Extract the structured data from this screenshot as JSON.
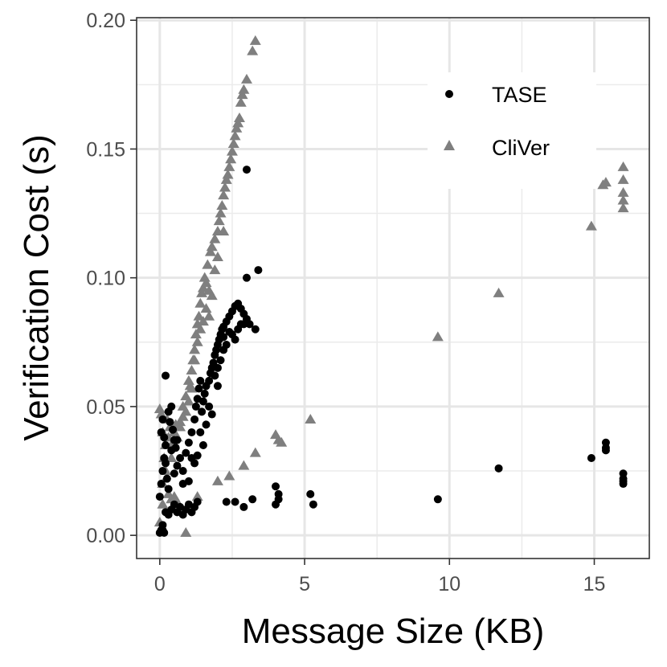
{
  "chart_data": {
    "type": "scatter",
    "xlabel": "Message Size (KB)",
    "ylabel": "Verification Cost (s)",
    "xlim": [
      -0.8,
      16.9
    ],
    "ylim": [
      -0.009,
      0.201
    ],
    "x_ticks": [
      0,
      5,
      10,
      15
    ],
    "x_tick_labels": [
      "0",
      "5",
      "10",
      "15"
    ],
    "y_ticks": [
      0,
      0.05,
      0.1,
      0.15,
      0.2
    ],
    "y_tick_labels": [
      "0.00",
      "0.05",
      "0.10",
      "0.15",
      "0.20"
    ],
    "grid": true,
    "legend_position": "top-right",
    "series": [
      {
        "name": "CliVer",
        "marker": "triangle",
        "color": "#7f7f7f",
        "points": [
          [
            0.0,
            0.049
          ],
          [
            0.05,
            0.047
          ],
          [
            0.1,
            0.04
          ],
          [
            0.1,
            0.02
          ],
          [
            0.1,
            0.012
          ],
          [
            0.15,
            0.03
          ],
          [
            0.2,
            0.035
          ],
          [
            0.2,
            0.025
          ],
          [
            0.0,
            0.005
          ],
          [
            0.05,
            0.002
          ],
          [
            0.25,
            0.045
          ],
          [
            0.3,
            0.038
          ],
          [
            0.35,
            0.042
          ],
          [
            0.4,
            0.03
          ],
          [
            0.45,
            0.036
          ],
          [
            0.5,
            0.04
          ],
          [
            0.55,
            0.043
          ],
          [
            0.6,
            0.038
          ],
          [
            0.3,
            0.016
          ],
          [
            0.4,
            0.014
          ],
          [
            0.5,
            0.015
          ],
          [
            0.6,
            0.013
          ],
          [
            0.7,
            0.044
          ],
          [
            0.8,
            0.05
          ],
          [
            0.9,
            0.054
          ],
          [
            1.0,
            0.06
          ],
          [
            1.05,
            0.058
          ],
          [
            1.1,
            0.064
          ],
          [
            1.15,
            0.068
          ],
          [
            1.2,
            0.072
          ],
          [
            1.25,
            0.078
          ],
          [
            1.3,
            0.082
          ],
          [
            1.35,
            0.085
          ],
          [
            1.4,
            0.09
          ],
          [
            1.45,
            0.094
          ],
          [
            1.5,
            0.096
          ],
          [
            1.55,
            0.1
          ],
          [
            1.6,
            0.098
          ],
          [
            1.65,
            0.105
          ],
          [
            1.7,
            0.095
          ],
          [
            1.75,
            0.11
          ],
          [
            1.8,
            0.112
          ],
          [
            1.9,
            0.115
          ],
          [
            2.0,
            0.118
          ],
          [
            2.05,
            0.122
          ],
          [
            2.1,
            0.125
          ],
          [
            2.15,
            0.128
          ],
          [
            2.2,
            0.132
          ],
          [
            2.25,
            0.135
          ],
          [
            2.3,
            0.138
          ],
          [
            2.35,
            0.14
          ],
          [
            2.4,
            0.143
          ],
          [
            2.45,
            0.146
          ],
          [
            2.5,
            0.149
          ],
          [
            2.55,
            0.152
          ],
          [
            2.6,
            0.155
          ],
          [
            2.65,
            0.158
          ],
          [
            2.7,
            0.16
          ],
          [
            2.75,
            0.162
          ],
          [
            2.8,
            0.168
          ],
          [
            2.85,
            0.171
          ],
          [
            2.9,
            0.173
          ],
          [
            3.0,
            0.177
          ],
          [
            3.2,
            0.188
          ],
          [
            3.3,
            0.192
          ],
          [
            1.6,
            0.088
          ],
          [
            1.7,
            0.085
          ],
          [
            1.8,
            0.093
          ],
          [
            1.9,
            0.103
          ],
          [
            2.0,
            0.108
          ],
          [
            2.2,
            0.118
          ],
          [
            1.4,
            0.08
          ],
          [
            1.3,
            0.075
          ],
          [
            1.2,
            0.068
          ],
          [
            1.1,
            0.057
          ],
          [
            0.9,
            0.048
          ],
          [
            0.8,
            0.046
          ],
          [
            0.7,
            0.042
          ],
          [
            1.0,
            0.052
          ],
          [
            1.5,
            0.083
          ],
          [
            0.9,
            0.001
          ],
          [
            1.3,
            0.015
          ],
          [
            2.0,
            0.021
          ],
          [
            2.4,
            0.023
          ],
          [
            2.9,
            0.027
          ],
          [
            3.3,
            0.032
          ],
          [
            4.0,
            0.039
          ],
          [
            4.1,
            0.037
          ],
          [
            4.2,
            0.036
          ],
          [
            5.2,
            0.045
          ],
          [
            9.6,
            0.077
          ],
          [
            11.7,
            0.094
          ],
          [
            14.9,
            0.12
          ],
          [
            15.3,
            0.136
          ],
          [
            15.4,
            0.137
          ],
          [
            16.0,
            0.143
          ],
          [
            16.0,
            0.138
          ],
          [
            16.0,
            0.133
          ],
          [
            16.0,
            0.13
          ],
          [
            16.0,
            0.127
          ]
        ]
      },
      {
        "name": "TASE",
        "marker": "circle",
        "color": "#000000",
        "points": [
          [
            0.0,
            0.001
          ],
          [
            0.05,
            0.002
          ],
          [
            0.1,
            0.004
          ],
          [
            0.1,
            0.002
          ],
          [
            0.15,
            0.001
          ],
          [
            0.2,
            0.062
          ],
          [
            0.0,
            0.015
          ],
          [
            0.05,
            0.02
          ],
          [
            0.1,
            0.025
          ],
          [
            0.15,
            0.03
          ],
          [
            0.2,
            0.035
          ],
          [
            0.05,
            0.04
          ],
          [
            0.1,
            0.045
          ],
          [
            0.15,
            0.038
          ],
          [
            0.2,
            0.028
          ],
          [
            0.25,
            0.022
          ],
          [
            0.3,
            0.018
          ],
          [
            0.3,
            0.048
          ],
          [
            0.35,
            0.044
          ],
          [
            0.4,
            0.05
          ],
          [
            0.45,
            0.041
          ],
          [
            0.5,
            0.037
          ],
          [
            0.55,
            0.034
          ],
          [
            0.2,
            0.009
          ],
          [
            0.3,
            0.008
          ],
          [
            0.4,
            0.01
          ],
          [
            0.5,
            0.012
          ],
          [
            0.6,
            0.009
          ],
          [
            0.7,
            0.011
          ],
          [
            0.8,
            0.008
          ],
          [
            0.9,
            0.01
          ],
          [
            1.0,
            0.012
          ],
          [
            1.1,
            0.009
          ],
          [
            1.2,
            0.011
          ],
          [
            1.3,
            0.013
          ],
          [
            0.6,
            0.027
          ],
          [
            0.8,
            0.025
          ],
          [
            0.9,
            0.032
          ],
          [
            1.0,
            0.036
          ],
          [
            1.1,
            0.04
          ],
          [
            1.2,
            0.045
          ],
          [
            1.25,
            0.05
          ],
          [
            1.3,
            0.053
          ],
          [
            1.35,
            0.057
          ],
          [
            1.4,
            0.06
          ],
          [
            1.45,
            0.048
          ],
          [
            1.5,
            0.052
          ],
          [
            1.55,
            0.055
          ],
          [
            1.6,
            0.058
          ],
          [
            1.7,
            0.06
          ],
          [
            1.75,
            0.063
          ],
          [
            1.8,
            0.065
          ],
          [
            1.85,
            0.067
          ],
          [
            1.9,
            0.07
          ],
          [
            1.95,
            0.072
          ],
          [
            2.0,
            0.074
          ],
          [
            2.05,
            0.076
          ],
          [
            2.1,
            0.078
          ],
          [
            2.15,
            0.08
          ],
          [
            2.2,
            0.081
          ],
          [
            2.3,
            0.083
          ],
          [
            2.4,
            0.085
          ],
          [
            2.5,
            0.087
          ],
          [
            2.6,
            0.089
          ],
          [
            2.7,
            0.09
          ],
          [
            2.8,
            0.088
          ],
          [
            2.9,
            0.086
          ],
          [
            3.0,
            0.084
          ],
          [
            3.1,
            0.082
          ],
          [
            2.5,
            0.078
          ],
          [
            2.6,
            0.076
          ],
          [
            2.7,
            0.08
          ],
          [
            2.3,
            0.074
          ],
          [
            2.2,
            0.072
          ],
          [
            2.1,
            0.068
          ],
          [
            2.0,
            0.065
          ],
          [
            1.9,
            0.062
          ],
          [
            3.0,
            0.1
          ],
          [
            3.4,
            0.103
          ],
          [
            3.3,
            0.08
          ],
          [
            3.0,
            0.142
          ],
          [
            1.2,
            0.028
          ],
          [
            1.3,
            0.031
          ],
          [
            1.5,
            0.035
          ],
          [
            1.4,
            0.04
          ],
          [
            1.6,
            0.043
          ],
          [
            1.8,
            0.047
          ],
          [
            0.8,
            0.02
          ],
          [
            1.1,
            0.03
          ],
          [
            1.7,
            0.05
          ],
          [
            2.0,
            0.058
          ],
          [
            2.4,
            0.079
          ],
          [
            2.8,
            0.082
          ],
          [
            2.2,
            0.077
          ],
          [
            2.9,
            0.082
          ],
          [
            1.0,
            0.021
          ],
          [
            0.7,
            0.03
          ],
          [
            0.6,
            0.037
          ],
          [
            0.4,
            0.033
          ],
          [
            0.5,
            0.024
          ],
          [
            2.6,
            0.013
          ],
          [
            2.9,
            0.011
          ],
          [
            3.2,
            0.014
          ],
          [
            4.0,
            0.019
          ],
          [
            4.0,
            0.012
          ],
          [
            4.1,
            0.014
          ],
          [
            4.1,
            0.016
          ],
          [
            5.2,
            0.016
          ],
          [
            5.3,
            0.012
          ],
          [
            9.6,
            0.014
          ],
          [
            11.7,
            0.026
          ],
          [
            14.9,
            0.03
          ],
          [
            15.4,
            0.036
          ],
          [
            15.4,
            0.034
          ],
          [
            15.4,
            0.033
          ],
          [
            16.0,
            0.024
          ],
          [
            16.0,
            0.022
          ],
          [
            16.0,
            0.021
          ],
          [
            16.0,
            0.02
          ],
          [
            2.3,
            0.013
          ]
        ]
      }
    ],
    "legend": [
      {
        "label": "TASE",
        "marker": "circle",
        "color": "#000000"
      },
      {
        "label": "CliVer",
        "marker": "triangle",
        "color": "#7f7f7f"
      }
    ]
  }
}
